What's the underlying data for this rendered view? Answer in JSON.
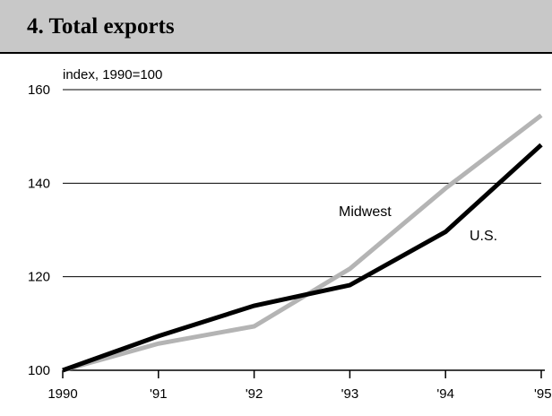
{
  "chart_data": {
    "type": "line",
    "title": "4. Total exports",
    "ylabel": "index, 1990=100",
    "xlabel": "",
    "categories": [
      "1990",
      "'91",
      "'92",
      "'93",
      "'94",
      "'95"
    ],
    "ylim": [
      100,
      160
    ],
    "yticks": [
      100,
      120,
      140,
      160
    ],
    "grid": true,
    "legend": "inline labels",
    "series": [
      {
        "name": "Midwest",
        "color": "#b4b4b4",
        "values": [
          100,
          105.7,
          109.4,
          121.7,
          138.9,
          154.5
        ]
      },
      {
        "name": "U.S.",
        "color": "#000000",
        "values": [
          100,
          107.3,
          113.8,
          118.2,
          129.6,
          148.2
        ]
      }
    ]
  }
}
